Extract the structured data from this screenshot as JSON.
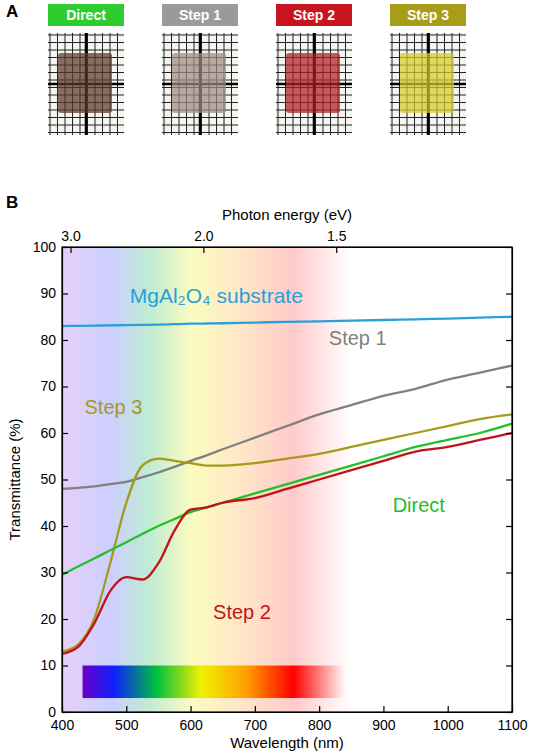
{
  "panel_a": {
    "letter": "A",
    "samples": [
      {
        "label": "Direct",
        "color": "#2ecc2e"
      },
      {
        "label": "Step 1",
        "color": "#9a9a9a"
      },
      {
        "label": "Step 2",
        "color": "#c8141e"
      },
      {
        "label": "Step 3",
        "color": "#a89d1a"
      }
    ]
  },
  "chart_data": {
    "letter": "B",
    "type": "line",
    "x_label": "Wavelength (nm)",
    "y_label": "Transmittance (%)",
    "x2_label": "Photon energy (eV)",
    "xlim": [
      400,
      1100
    ],
    "xticks": [
      400,
      500,
      600,
      700,
      800,
      900,
      1000,
      1100
    ],
    "ylim": [
      0,
      100
    ],
    "yticks": [
      0,
      10,
      20,
      30,
      40,
      50,
      60,
      70,
      80,
      90,
      100
    ],
    "x2ticks": [
      {
        "value": 3,
        "label": "3.0"
      },
      {
        "value": 2,
        "label": "2.0"
      },
      {
        "value": 1.5,
        "label": "1.5"
      }
    ],
    "grid": false,
    "x": [
      400,
      425,
      450,
      475,
      500,
      525,
      550,
      575,
      600,
      625,
      650,
      700,
      750,
      800,
      850,
      900,
      950,
      1000,
      1050,
      1100
    ],
    "series": [
      {
        "name": "MgAl₂O₄ substrate",
        "color": "#2a9fd8",
        "values": [
          83,
          83.05,
          83.1,
          83.15,
          83.2,
          83.25,
          83.3,
          83.4,
          83.5,
          83.55,
          83.6,
          83.75,
          83.9,
          84,
          84.15,
          84.3,
          84.45,
          84.6,
          84.8,
          85
        ]
      },
      {
        "name": "Step 1",
        "color": "#808080",
        "values": [
          48,
          48.2,
          48.5,
          49,
          49.5,
          50.5,
          51.5,
          52.7,
          54,
          55.2,
          56.5,
          59,
          61.5,
          64,
          66,
          68,
          69.5,
          71.5,
          73,
          74.5
        ]
      },
      {
        "name": "Step 3",
        "color": "#a59a1d",
        "values": [
          13,
          14.5,
          20,
          32,
          45,
          53,
          54.5,
          54,
          53.5,
          53,
          53,
          53.5,
          54.5,
          55.5,
          57,
          58.5,
          60,
          61.5,
          63,
          64
        ]
      },
      {
        "name": "Direct",
        "color": "#22c02a",
        "values": [
          29.5,
          31.3,
          33,
          34.8,
          36.5,
          38.3,
          40,
          41.5,
          43,
          44,
          45,
          47,
          49,
          51,
          53,
          55,
          57,
          58.5,
          60,
          62
        ]
      },
      {
        "name": "Step 2",
        "color": "#c0141a",
        "values": [
          12.5,
          14,
          19,
          26,
          29,
          28.5,
          32,
          39,
          43.5,
          44,
          45,
          46,
          48,
          50,
          52,
          54,
          56,
          57,
          58.5,
          60
        ]
      }
    ]
  }
}
